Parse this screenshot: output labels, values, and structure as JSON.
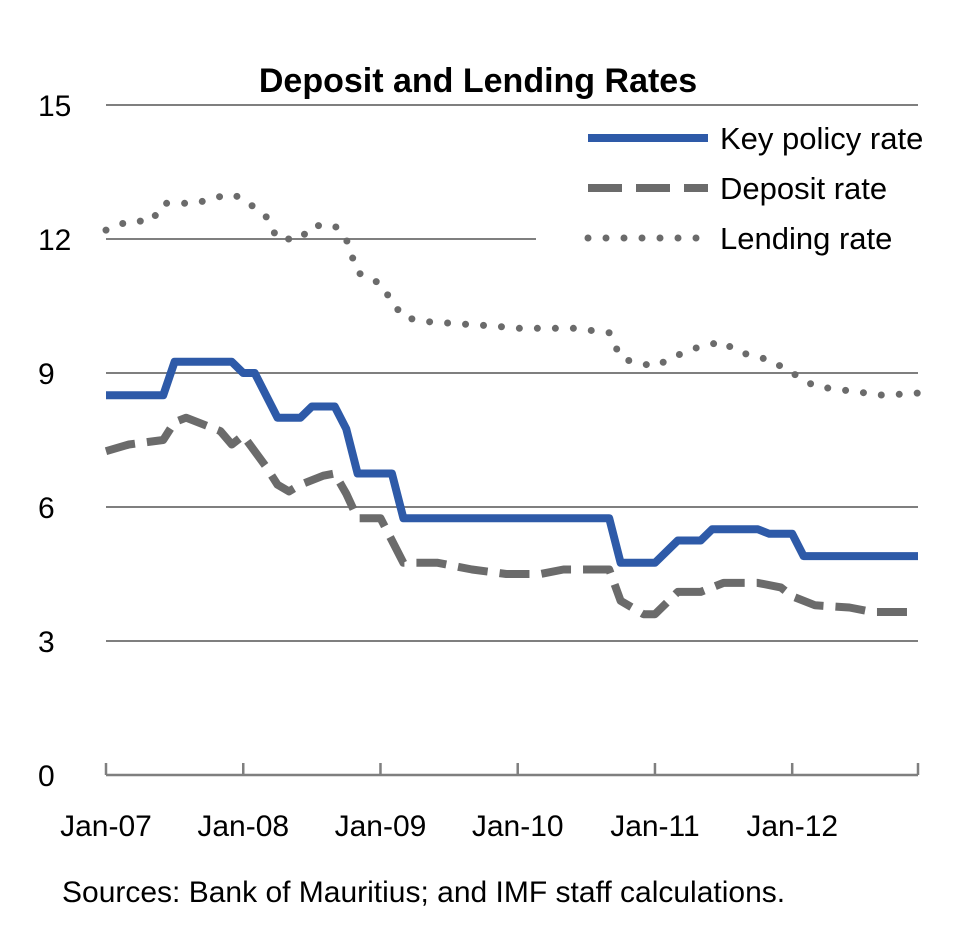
{
  "chart_data": {
    "type": "line",
    "title": "Deposit and Lending Rates",
    "ylim": [
      0,
      15
    ],
    "yticks": [
      0,
      3,
      6,
      9,
      12,
      15
    ],
    "xlim": [
      "Jan-07",
      "Dec-12"
    ],
    "x_tick_labels": [
      "Jan-07",
      "Jan-08",
      "Jan-09",
      "Jan-10",
      "Jan-11",
      "Jan-12"
    ],
    "grid": true,
    "legend_position": "top-right",
    "series": [
      {
        "name": "Key policy rate",
        "color": "#2e5aa8",
        "style": "solid",
        "points": [
          [
            "Jan-07",
            8.5
          ],
          [
            "Jun-07",
            8.5
          ],
          [
            "Jul-07",
            9.25
          ],
          [
            "Dec-07",
            9.25
          ],
          [
            "Jan-08",
            9.0
          ],
          [
            "Feb-08",
            9.0
          ],
          [
            "Apr-08",
            8.0
          ],
          [
            "Jun-08",
            8.0
          ],
          [
            "Jul-08",
            8.25
          ],
          [
            "Sep-08",
            8.25
          ],
          [
            "Oct-08",
            7.75
          ],
          [
            "Nov-08",
            6.75
          ],
          [
            "Feb-09",
            6.75
          ],
          [
            "Mar-09",
            5.75
          ],
          [
            "Sep-10",
            5.75
          ],
          [
            "Oct-10",
            4.75
          ],
          [
            "Jan-11",
            4.75
          ],
          [
            "Mar-11",
            5.25
          ],
          [
            "May-11",
            5.25
          ],
          [
            "Jun-11",
            5.5
          ],
          [
            "Oct-11",
            5.5
          ],
          [
            "Nov-11",
            5.4
          ],
          [
            "Jan-12",
            5.4
          ],
          [
            "Feb-12",
            4.9
          ],
          [
            "Dec-12",
            4.9
          ]
        ]
      },
      {
        "name": "Deposit rate",
        "color": "#6b6b6b",
        "style": "dashed",
        "points": [
          [
            "Jan-07",
            7.25
          ],
          [
            "Mar-07",
            7.4
          ],
          [
            "Jun-07",
            7.5
          ],
          [
            "Jul-07",
            7.9
          ],
          [
            "Aug-07",
            8.0
          ],
          [
            "Nov-07",
            7.7
          ],
          [
            "Dec-07",
            7.4
          ],
          [
            "Jan-08",
            7.6
          ],
          [
            "Mar-08",
            6.9
          ],
          [
            "Apr-08",
            6.5
          ],
          [
            "May-08",
            6.35
          ],
          [
            "Jun-08",
            6.5
          ],
          [
            "Aug-08",
            6.7
          ],
          [
            "Sep-08",
            6.75
          ],
          [
            "Oct-08",
            6.3
          ],
          [
            "Nov-08",
            5.75
          ],
          [
            "Jan-09",
            5.75
          ],
          [
            "Mar-09",
            4.75
          ],
          [
            "Jun-09",
            4.75
          ],
          [
            "Sep-09",
            4.6
          ],
          [
            "Dec-09",
            4.5
          ],
          [
            "Mar-10",
            4.5
          ],
          [
            "May-10",
            4.6
          ],
          [
            "Aug-10",
            4.6
          ],
          [
            "Sep-10",
            4.6
          ],
          [
            "Oct-10",
            3.9
          ],
          [
            "Dec-10",
            3.6
          ],
          [
            "Jan-11",
            3.6
          ],
          [
            "Mar-11",
            4.1
          ],
          [
            "May-11",
            4.1
          ],
          [
            "Jul-11",
            4.3
          ],
          [
            "Oct-11",
            4.3
          ],
          [
            "Dec-11",
            4.2
          ],
          [
            "Jan-12",
            4.0
          ],
          [
            "Mar-12",
            3.8
          ],
          [
            "Jun-12",
            3.75
          ],
          [
            "Aug-12",
            3.65
          ],
          [
            "Dec-12",
            3.65
          ]
        ]
      },
      {
        "name": "Lending rate",
        "color": "#6b6b6b",
        "style": "dotted",
        "points": [
          [
            "Jan-07",
            12.2
          ],
          [
            "Mar-07",
            12.4
          ],
          [
            "Apr-07",
            12.4
          ],
          [
            "May-07",
            12.4
          ],
          [
            "Jun-07",
            12.8
          ],
          [
            "Jul-07",
            12.8
          ],
          [
            "Sep-07",
            12.8
          ],
          [
            "Oct-07",
            12.9
          ],
          [
            "Dec-07",
            13.0
          ],
          [
            "Jan-08",
            12.9
          ],
          [
            "Mar-08",
            12.5
          ],
          [
            "Apr-08",
            12.0
          ],
          [
            "Jun-08",
            12.0
          ],
          [
            "Jul-08",
            12.3
          ],
          [
            "Sep-08",
            12.3
          ],
          [
            "Oct-08",
            12.0
          ],
          [
            "Nov-08",
            11.25
          ],
          [
            "Jan-09",
            11.0
          ],
          [
            "Feb-09",
            10.6
          ],
          [
            "Mar-09",
            10.25
          ],
          [
            "May-09",
            10.15
          ],
          [
            "Aug-09",
            10.1
          ],
          [
            "Nov-09",
            10.05
          ],
          [
            "Jan-10",
            10.0
          ],
          [
            "Jun-10",
            10.0
          ],
          [
            "Sep-10",
            9.9
          ],
          [
            "Oct-10",
            9.35
          ],
          [
            "Nov-10",
            9.25
          ],
          [
            "Jan-11",
            9.15
          ],
          [
            "Mar-11",
            9.4
          ],
          [
            "May-11",
            9.6
          ],
          [
            "Jul-11",
            9.7
          ],
          [
            "Aug-11",
            9.5
          ],
          [
            "Oct-11",
            9.35
          ],
          [
            "Nov-11",
            9.3
          ],
          [
            "Jan-12",
            9.0
          ],
          [
            "Mar-12",
            8.7
          ],
          [
            "Jun-12",
            8.6
          ],
          [
            "Sep-12",
            8.5
          ],
          [
            "Dec-12",
            8.55
          ]
        ]
      }
    ]
  },
  "source_note": "Sources: Bank of Mauritius; and IMF staff calculations."
}
